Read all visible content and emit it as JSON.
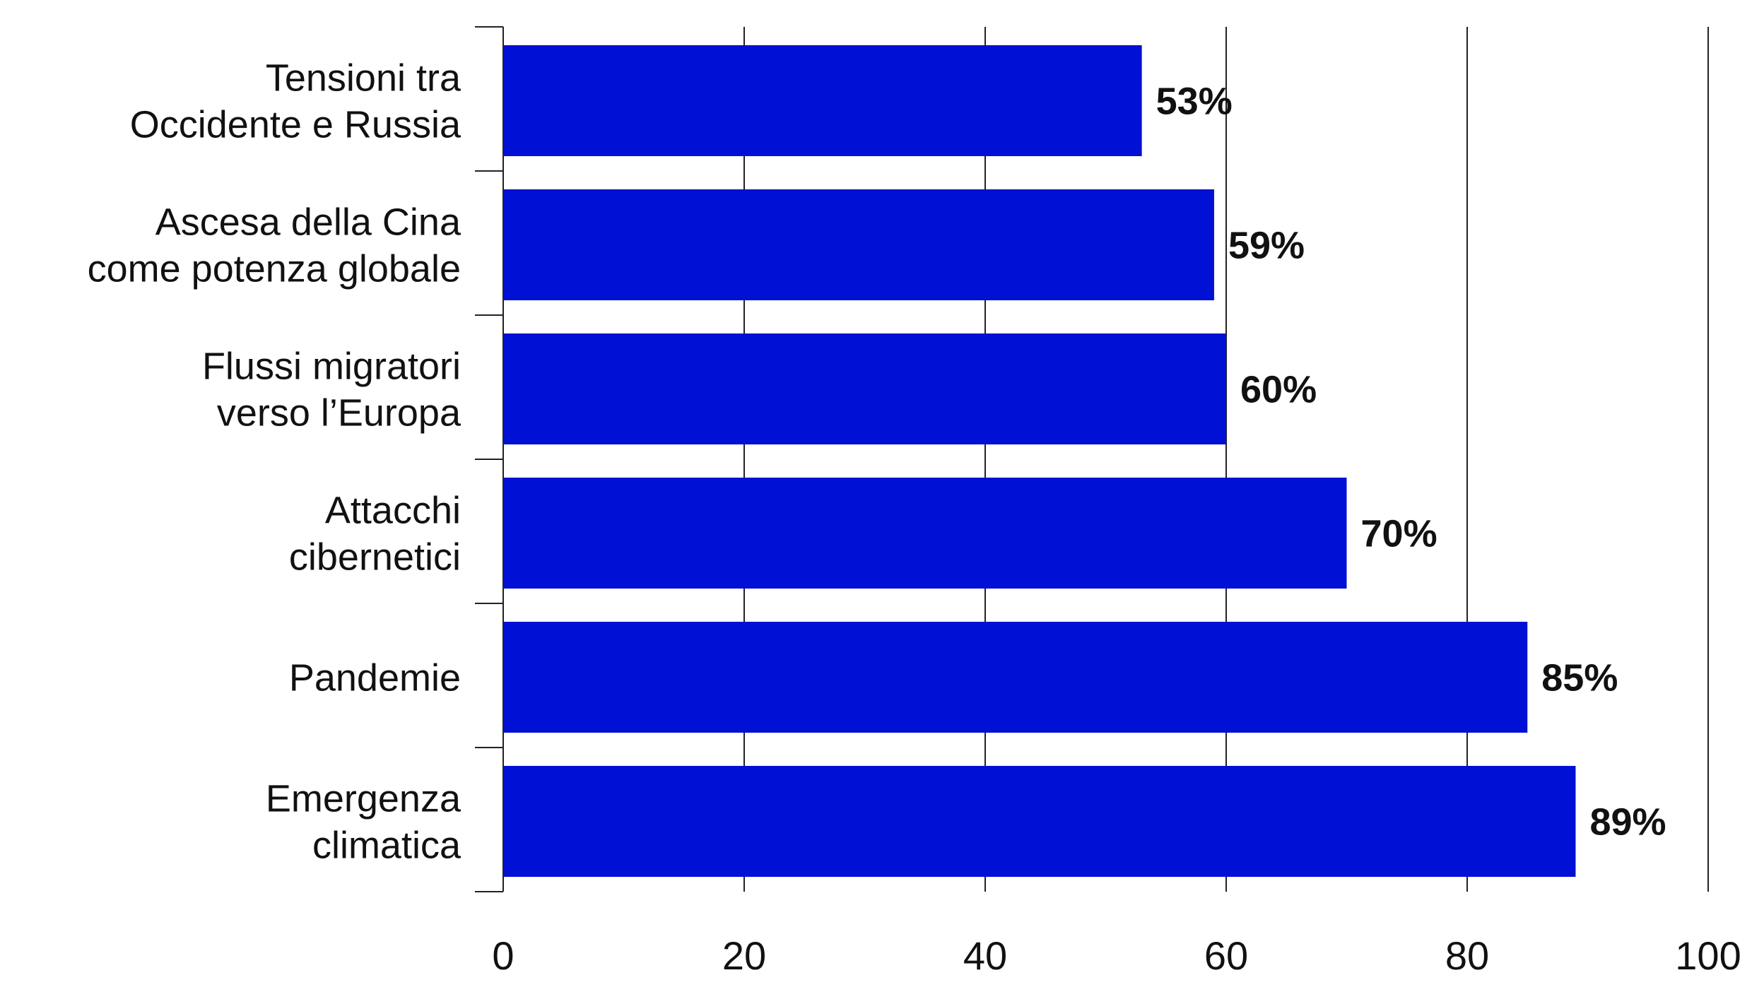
{
  "chart_data": {
    "type": "bar",
    "orientation": "horizontal",
    "categories": [
      [
        "Tensioni tra",
        "Occidente e Russia"
      ],
      [
        "Ascesa della Cina",
        "come potenza globale"
      ],
      [
        "Flussi migratori",
        "verso l’Europa"
      ],
      [
        "Attacchi",
        "cibernetici"
      ],
      [
        "Pandemie"
      ],
      [
        "Emergenza",
        "climatica"
      ]
    ],
    "values": [
      53,
      59,
      60,
      70,
      85,
      89
    ],
    "value_labels": [
      "53%",
      "59%",
      "60%",
      "70%",
      "85%",
      "89%"
    ],
    "xlim": [
      0,
      100
    ],
    "xticks": [
      0,
      20,
      40,
      60,
      80,
      100
    ],
    "xtick_labels": [
      "0",
      "20",
      "40",
      "60",
      "80",
      "100"
    ],
    "grid": "vertical",
    "bar_color": "#0010d4",
    "title": "",
    "xlabel": "",
    "ylabel": ""
  }
}
